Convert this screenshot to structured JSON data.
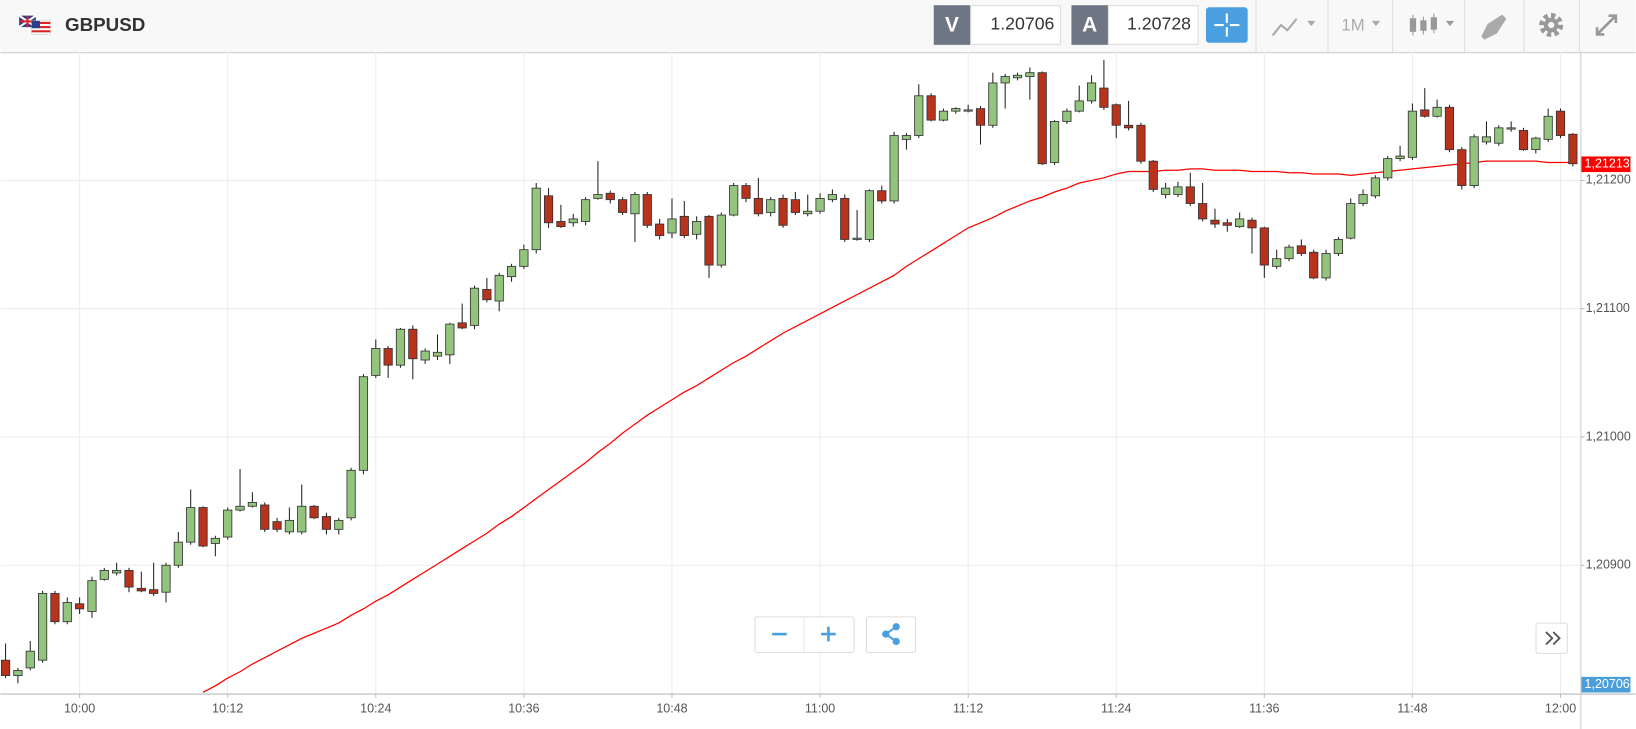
{
  "toolbar": {
    "symbol": "GBPUSD",
    "sell_label": "V",
    "sell_price": "1.20706",
    "buy_label": "A",
    "buy_price": "1.20728",
    "timeframe": "1M"
  },
  "chart_data": {
    "type": "candlestick",
    "categories": [
      null,
      null,
      null,
      null,
      null,
      null,
      "10:00",
      null,
      null,
      null,
      null,
      null,
      null,
      null,
      null,
      null,
      null,
      null,
      "10:12",
      null,
      null,
      null,
      null,
      null,
      null,
      null,
      null,
      null,
      null,
      null,
      "10:24",
      null,
      null,
      null,
      null,
      null,
      null,
      null,
      null,
      null,
      null,
      null,
      "10:36",
      null,
      null,
      null,
      null,
      null,
      null,
      null,
      null,
      null,
      null,
      null,
      "10:48",
      null,
      null,
      null,
      null,
      null,
      null,
      null,
      null,
      null,
      null,
      null,
      "11:00",
      null,
      null,
      null,
      null,
      null,
      null,
      null,
      null,
      null,
      null,
      null,
      "11:12",
      null,
      null,
      null,
      null,
      null,
      null,
      null,
      null,
      null,
      null,
      null,
      "11:24",
      null,
      null,
      null,
      null,
      null,
      null,
      null,
      null,
      null,
      null,
      null,
      "11:36",
      null,
      null,
      null,
      null,
      null,
      null,
      null,
      null,
      null,
      null,
      null,
      "11:48",
      null,
      null,
      null,
      null,
      null,
      null,
      null,
      null,
      null,
      null,
      null,
      "12:00",
      null
    ],
    "candles": {
      "open": [
        1.20826,
        1.20814,
        1.2082,
        1.20826,
        1.20878,
        1.20856,
        1.2087,
        1.20864,
        1.20889,
        1.20894,
        1.20896,
        1.20882,
        1.20881,
        1.20879,
        1.209,
        1.20918,
        1.20945,
        1.20917,
        1.20922,
        1.20943,
        1.20946,
        1.20947,
        1.20934,
        1.20926,
        1.20926,
        1.20946,
        1.20938,
        1.20928,
        1.20937,
        1.20974,
        1.21048,
        1.21069,
        1.21056,
        1.21084,
        1.2106,
        1.21063,
        1.21064,
        1.21089,
        1.21087,
        1.21115,
        1.21106,
        1.21125,
        1.21133,
        1.21146,
        1.21188,
        1.21168,
        1.21167,
        1.21168,
        1.21186,
        1.2119,
        1.21185,
        1.21174,
        1.21189,
        1.21166,
        1.21159,
        1.21172,
        1.21158,
        1.21172,
        1.21134,
        1.21173,
        1.21196,
        1.21186,
        1.21175,
        1.21186,
        1.21185,
        1.21174,
        1.21176,
        1.21185,
        1.21186,
        1.21154,
        1.21154,
        1.21192,
        1.21184,
        1.21232,
        1.21235,
        1.21266,
        1.21247,
        1.21254,
        1.21254,
        1.21256,
        1.21243,
        1.21276,
        1.2128,
        1.21281,
        1.21284,
        1.21214,
        1.21246,
        1.21254,
        1.21262,
        1.21272,
        1.21259,
        1.21243,
        1.21243,
        1.21215,
        1.21189,
        1.21189,
        1.21195,
        1.21182,
        1.21169,
        1.21167,
        1.21164,
        1.21169,
        1.21163,
        1.21133,
        1.21139,
        1.21149,
        1.21144,
        1.21124,
        1.21143,
        1.21155,
        1.21182,
        1.21188,
        1.21202,
        1.21217,
        1.21218,
        1.21255,
        1.2125,
        1.21257,
        1.21224,
        1.21196,
        1.2123,
        1.21229,
        1.2124,
        1.21239,
        1.21224,
        1.21232,
        1.21254,
        1.21236
      ],
      "high": [
        1.20839,
        1.2082,
        1.20841,
        1.2088,
        1.2088,
        1.20875,
        1.20875,
        1.20891,
        1.20898,
        1.20902,
        1.20898,
        1.20895,
        1.20902,
        1.20902,
        1.20926,
        1.20959,
        1.20946,
        1.20923,
        1.20945,
        1.20975,
        1.20957,
        1.20949,
        1.20937,
        1.20945,
        1.20963,
        1.20947,
        1.20941,
        1.20937,
        1.20976,
        1.21049,
        1.21076,
        1.21071,
        1.21085,
        1.21087,
        1.21069,
        1.2108,
        1.21089,
        1.21104,
        1.21118,
        1.21124,
        1.21128,
        1.21135,
        1.2115,
        1.21198,
        1.21194,
        1.21181,
        1.21174,
        1.21187,
        1.21215,
        1.21192,
        1.21187,
        1.21191,
        1.21191,
        1.2117,
        1.21186,
        1.21184,
        1.21172,
        1.21173,
        1.21175,
        1.21198,
        1.21198,
        1.21202,
        1.21187,
        1.21189,
        1.21191,
        1.21189,
        1.2119,
        1.21193,
        1.21189,
        1.21177,
        1.21193,
        1.21196,
        1.21238,
        1.21237,
        1.21275,
        1.21268,
        1.21256,
        1.21257,
        1.21259,
        1.21258,
        1.21284,
        1.21283,
        1.21284,
        1.21288,
        1.21285,
        1.21247,
        1.21256,
        1.21274,
        1.21282,
        1.21294,
        1.2126,
        1.21262,
        1.21245,
        1.21216,
        1.21198,
        1.21199,
        1.21206,
        1.21198,
        1.21178,
        1.2117,
        1.21175,
        1.21171,
        1.21164,
        1.21146,
        1.2115,
        1.21154,
        1.21146,
        1.21146,
        1.21156,
        1.21186,
        1.21193,
        1.21204,
        1.21219,
        1.21227,
        1.2126,
        1.21272,
        1.21263,
        1.21259,
        1.21226,
        1.21236,
        1.21246,
        1.21243,
        1.21246,
        1.21241,
        1.21234,
        1.21256,
        1.21256,
        1.21237
      ],
      "low": [
        1.20812,
        1.20808,
        1.20818,
        1.20824,
        1.20854,
        1.20854,
        1.20862,
        1.20859,
        1.20888,
        1.20892,
        1.20879,
        1.20879,
        1.20876,
        1.20871,
        1.20898,
        1.20916,
        1.20914,
        1.20907,
        1.2092,
        1.20942,
        1.20945,
        1.20926,
        1.20926,
        1.20924,
        1.20924,
        1.20936,
        1.20924,
        1.20924,
        1.20935,
        1.20971,
        1.21046,
        1.21046,
        1.21054,
        1.21045,
        1.21057,
        1.2106,
        1.21057,
        1.21084,
        1.21084,
        1.21105,
        1.21098,
        1.21121,
        1.21131,
        1.21143,
        1.21163,
        1.21163,
        1.21164,
        1.21165,
        1.21185,
        1.21182,
        1.21173,
        1.21152,
        1.21163,
        1.21154,
        1.21155,
        1.21155,
        1.21154,
        1.21124,
        1.21132,
        1.21172,
        1.21183,
        1.21172,
        1.21172,
        1.21163,
        1.21173,
        1.21172,
        1.21174,
        1.21183,
        1.21152,
        1.21153,
        1.21152,
        1.21182,
        1.21182,
        1.21224,
        1.21233,
        1.21246,
        1.21246,
        1.21252,
        1.21253,
        1.21228,
        1.21241,
        1.21256,
        1.21278,
        1.21263,
        1.21212,
        1.21212,
        1.21244,
        1.21253,
        1.2126,
        1.21255,
        1.21233,
        1.21239,
        1.21213,
        1.21191,
        1.21186,
        1.21187,
        1.2118,
        1.21168,
        1.21163,
        1.2116,
        1.21163,
        1.21143,
        1.21124,
        1.21131,
        1.21137,
        1.21141,
        1.21123,
        1.21122,
        1.21141,
        1.21154,
        1.2118,
        1.21186,
        1.212,
        1.21215,
        1.21216,
        1.21249,
        1.21249,
        1.21222,
        1.21193,
        1.21194,
        1.21228,
        1.21227,
        1.21238,
        1.21223,
        1.21221,
        1.2123,
        1.21233,
        1.21211
      ],
      "close": [
        1.20814,
        1.20818,
        1.20833,
        1.20878,
        1.20856,
        1.20871,
        1.20866,
        1.20888,
        1.20896,
        1.20896,
        1.20883,
        1.2088,
        1.20878,
        1.209,
        1.20918,
        1.20945,
        1.20915,
        1.20921,
        1.20943,
        1.20946,
        1.20949,
        1.20928,
        1.20928,
        1.20935,
        1.20946,
        1.20937,
        1.20928,
        1.20935,
        1.20974,
        1.21047,
        1.21069,
        1.21056,
        1.21084,
        1.21061,
        1.21067,
        1.21066,
        1.21088,
        1.21085,
        1.21116,
        1.21107,
        1.21126,
        1.21133,
        1.21146,
        1.21194,
        1.21167,
        1.21164,
        1.2117,
        1.21185,
        1.21189,
        1.21185,
        1.21175,
        1.21189,
        1.21165,
        1.21157,
        1.2117,
        1.21157,
        1.21168,
        1.21134,
        1.21173,
        1.21196,
        1.21186,
        1.21174,
        1.21185,
        1.21165,
        1.21175,
        1.21176,
        1.21186,
        1.21189,
        1.21154,
        1.21155,
        1.21192,
        1.21184,
        1.21235,
        1.21235,
        1.21266,
        1.21247,
        1.21254,
        1.21256,
        1.21255,
        1.21243,
        1.21276,
        1.21281,
        1.21282,
        1.21284,
        1.21213,
        1.21246,
        1.21254,
        1.21262,
        1.21276,
        1.21257,
        1.21243,
        1.21241,
        1.21215,
        1.21193,
        1.21194,
        1.21195,
        1.21182,
        1.2117,
        1.21166,
        1.21165,
        1.2117,
        1.21163,
        1.21134,
        1.21139,
        1.21148,
        1.21143,
        1.21124,
        1.21143,
        1.21154,
        1.21182,
        1.21189,
        1.21202,
        1.21217,
        1.21219,
        1.21254,
        1.2125,
        1.21257,
        1.21224,
        1.21196,
        1.21234,
        1.21234,
        1.21241,
        1.21241,
        1.21224,
        1.21233,
        1.2125,
        1.21235,
        1.21213
      ],
      "up_color": "#93c47d",
      "down_color": "#b8321c"
    },
    "ma": {
      "color": "#ff0000",
      "values": [
        null,
        null,
        null,
        null,
        null,
        null,
        null,
        null,
        null,
        null,
        null,
        null,
        null,
        null,
        null,
        null,
        1.20801,
        1.20806,
        1.20812,
        1.20817,
        1.20823,
        1.20828,
        1.20833,
        1.20838,
        1.20843,
        1.20847,
        1.20851,
        1.20855,
        1.20861,
        1.20866,
        1.20872,
        1.20877,
        1.20883,
        1.20889,
        1.20895,
        1.20901,
        1.20907,
        1.20913,
        1.20919,
        1.20925,
        1.20932,
        1.20938,
        1.20945,
        1.20952,
        1.20959,
        1.20966,
        1.20973,
        1.2098,
        1.20988,
        1.20995,
        1.21003,
        1.2101,
        1.21017,
        1.21023,
        1.21029,
        1.21035,
        1.2104,
        1.21046,
        1.21052,
        1.21058,
        1.21063,
        1.21069,
        1.21075,
        1.21081,
        1.21086,
        1.21091,
        1.21096,
        1.21101,
        1.21106,
        1.21111,
        1.21116,
        1.21121,
        1.21126,
        1.21133,
        1.21139,
        1.21145,
        1.21151,
        1.21157,
        1.21163,
        1.21167,
        1.21171,
        1.21176,
        1.2118,
        1.21184,
        1.21187,
        1.21191,
        1.21194,
        1.21198,
        1.212,
        1.21202,
        1.21205,
        1.21207,
        1.21207,
        1.21207,
        1.21208,
        1.21208,
        1.21209,
        1.21209,
        1.21208,
        1.21208,
        1.21208,
        1.21207,
        1.21207,
        1.21207,
        1.21206,
        1.21206,
        1.21205,
        1.21205,
        1.21205,
        1.21204,
        1.21205,
        1.21206,
        1.21207,
        1.21208,
        1.21209,
        1.2121,
        1.21211,
        1.21212,
        1.21213,
        1.21214,
        1.21215,
        1.21215,
        1.21215,
        1.21215,
        1.21215,
        1.21214,
        1.21214,
        1.21214
      ]
    },
    "ylim": [
      1.208,
      1.213
    ],
    "yticks": [
      {
        "value": 1.212,
        "label": "1,21200"
      },
      {
        "value": 1.211,
        "label": "1,21100"
      },
      {
        "value": 1.21,
        "label": "1,21000"
      },
      {
        "value": 1.209,
        "label": "1,20900"
      }
    ],
    "grid": true,
    "price_tags": [
      {
        "value": 1.21213,
        "label": "1,21213",
        "color": "#ff0000"
      },
      {
        "value": 1.20706,
        "label": "1,20706",
        "color": "#4a9fd8"
      }
    ]
  }
}
